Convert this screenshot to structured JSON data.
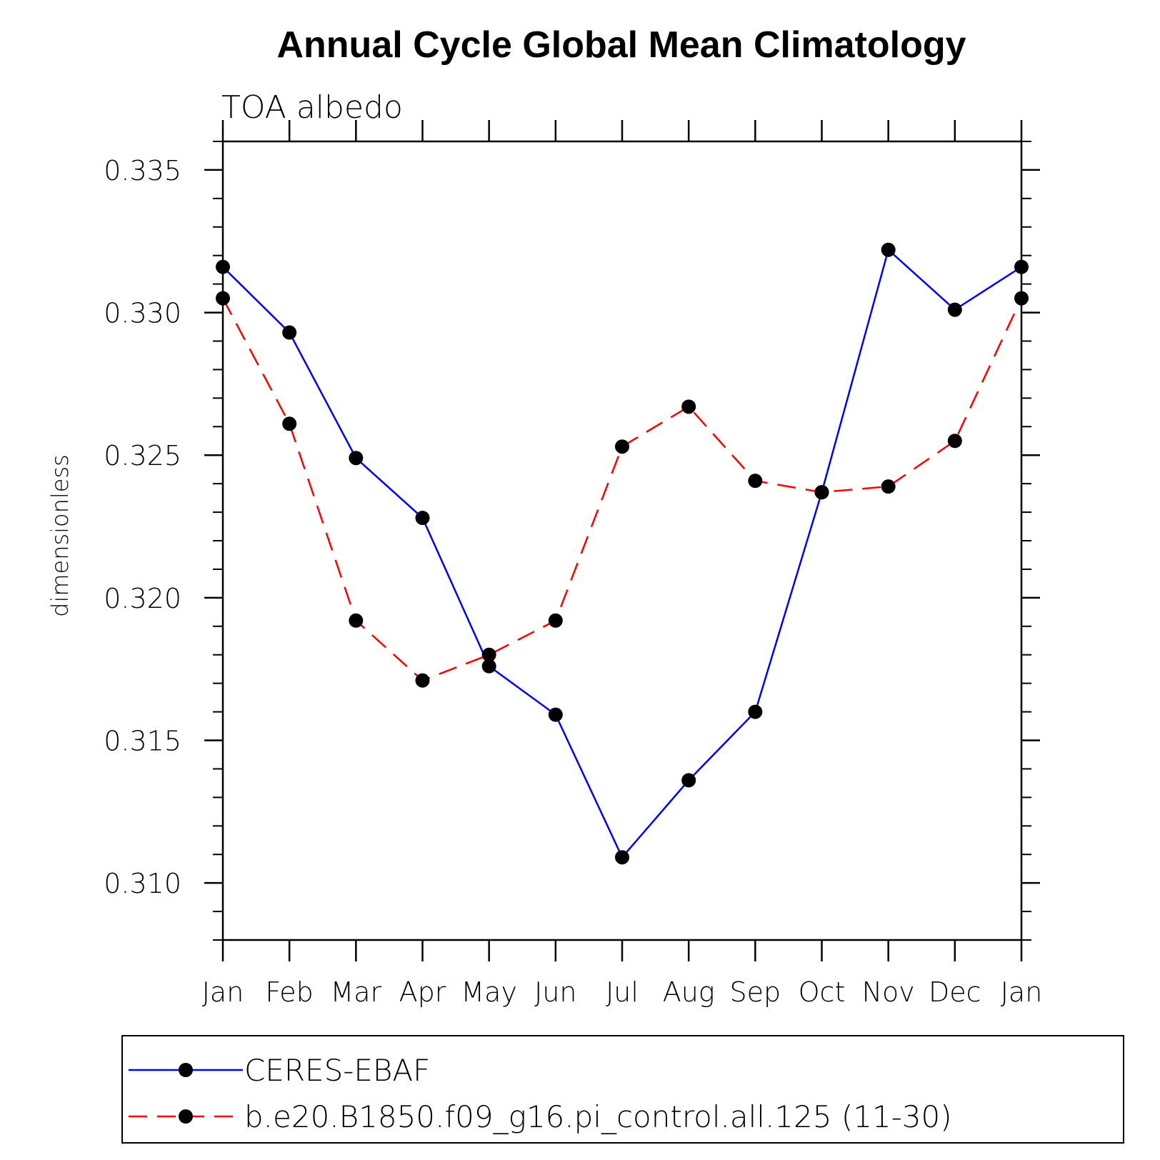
{
  "chart_data": {
    "type": "line",
    "title": "Annual Cycle Global Mean Climatology",
    "subtitle": "TOA albedo",
    "xlabel": "",
    "ylabel": "dimensionless",
    "categories": [
      "Jan",
      "Feb",
      "Mar",
      "Apr",
      "May",
      "Jun",
      "Jul",
      "Aug",
      "Sep",
      "Oct",
      "Nov",
      "Dec",
      "Jan"
    ],
    "ylim": [
      0.308,
      0.336
    ],
    "yticks": [
      0.31,
      0.315,
      0.32,
      0.325,
      0.33,
      0.335
    ],
    "ytick_labels": [
      "0.310",
      "0.315",
      "0.320",
      "0.325",
      "0.330",
      "0.335"
    ],
    "y_minor_step": 0.001,
    "legend_position": "bottom",
    "series": [
      {
        "name": "CERES-EBAF",
        "color": "#0000ff",
        "dash": "solid",
        "values": [
          0.3316,
          0.3293,
          0.3249,
          0.3228,
          0.3176,
          0.3159,
          0.3109,
          0.3136,
          0.316,
          0.3237,
          0.3322,
          0.3301,
          0.3316
        ]
      },
      {
        "name": "b.e20.B1850.f09_g16.pi_control.all.125 (11-30)",
        "color": "#ff0000",
        "dash": "dashed",
        "values": [
          0.3305,
          0.3261,
          0.3192,
          0.3171,
          0.318,
          0.3192,
          0.3253,
          0.3267,
          0.3241,
          0.3237,
          0.3239,
          0.3255,
          0.3305
        ]
      }
    ]
  }
}
